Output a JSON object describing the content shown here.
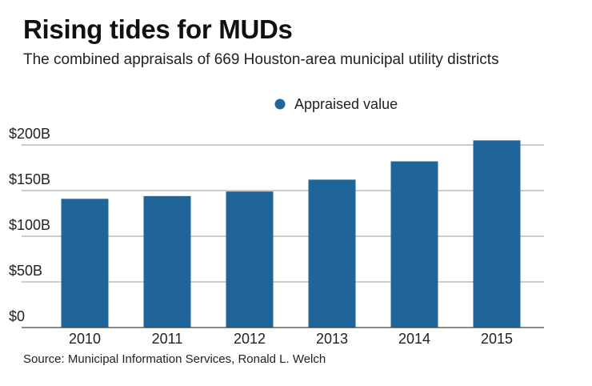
{
  "header": {
    "title": "Rising tides for MUDs",
    "subtitle": "The combined appraisals of 669 Houston-area municipal utility districts"
  },
  "footer": {
    "source": "Source: Municipal Information Services, Ronald L. Welch"
  },
  "colors": {
    "bar": "#1f6599",
    "grid": "#9a9a9a",
    "axis": "#444444"
  },
  "chart_data": {
    "type": "bar",
    "title": "Rising tides for MUDs",
    "xlabel": "",
    "ylabel": "",
    "categories": [
      "2010",
      "2011",
      "2012",
      "2013",
      "2014",
      "2015"
    ],
    "series": [
      {
        "name": "Appraised value",
        "values": [
          141,
          144,
          149,
          162,
          182,
          205
        ]
      }
    ],
    "ylim": [
      0,
      200
    ],
    "yticks": [
      0,
      50,
      100,
      150,
      200
    ],
    "ytick_labels": [
      "$0",
      "$50B",
      "$100B",
      "$150B",
      "$200B"
    ],
    "legend_position": "top-center",
    "grid": true
  }
}
